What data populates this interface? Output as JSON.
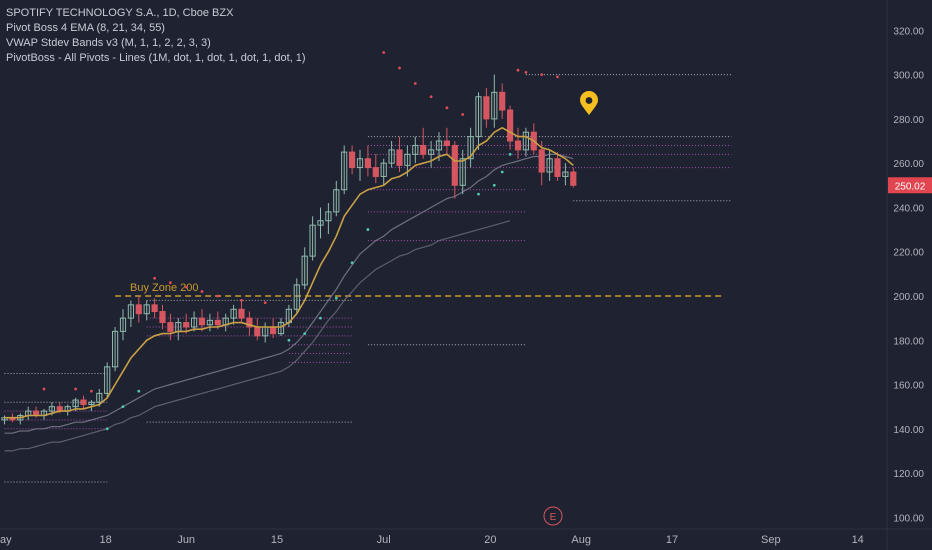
{
  "colors": {
    "background": "#1f2230",
    "text": "#b2b5be",
    "up_candle": "#8fb9ac",
    "down_candle": "#d55660",
    "ema": "#c9a045",
    "vwap": "#77798a",
    "psar_red": "#e04b55",
    "psar_teal": "#4ec7b4",
    "pivot_white": "#cfd2da",
    "pivot_magenta": "#c45bd1",
    "buy_zone": "#c99a2e",
    "price_badge": "#e1454f",
    "marker": "#f5c01f"
  },
  "legend": {
    "title": "SPOTIFY TECHNOLOGY S.A., 1D, Cboe BZX",
    "line1": "Pivot Boss 4 EMA (8, 21, 34, 55)",
    "line2": "VWAP Stdev Bands v3 (M, 1, 1, 2, 2, 3, 3)",
    "line3": "PivotBoss - All Pivots - Lines (1M, dot, 1, dot, 1, dot, 1, dot, 1)"
  },
  "price_label": "250.02",
  "earnings_label": "E",
  "chart_data": {
    "type": "candlestick",
    "ylim": [
      97,
      331
    ],
    "y_ticks": [
      "100.00",
      "120.00",
      "140.00",
      "160.00",
      "180.00",
      "200.00",
      "220.00",
      "240.00",
      "260.00",
      "280.00",
      "300.00",
      "320.00"
    ],
    "x_ticks": [
      "ay",
      "18",
      "Jun",
      "15",
      "Jul",
      "20",
      "Aug",
      "17",
      "Sep",
      "14"
    ],
    "annotation": "Buy Zone 200",
    "buy_zone_level": 200,
    "last_price": 250.02,
    "candles": [
      {
        "o": 144,
        "h": 146,
        "l": 142,
        "c": 145
      },
      {
        "o": 145,
        "h": 147,
        "l": 143,
        "c": 144
      },
      {
        "o": 144,
        "h": 147,
        "l": 142,
        "c": 146
      },
      {
        "o": 146,
        "h": 150,
        "l": 144,
        "c": 148
      },
      {
        "o": 148,
        "h": 150,
        "l": 145,
        "c": 146
      },
      {
        "o": 146,
        "h": 149,
        "l": 144,
        "c": 148
      },
      {
        "o": 148,
        "h": 152,
        "l": 146,
        "c": 150
      },
      {
        "o": 150,
        "h": 152,
        "l": 147,
        "c": 148
      },
      {
        "o": 148,
        "h": 151,
        "l": 146,
        "c": 150
      },
      {
        "o": 150,
        "h": 154,
        "l": 148,
        "c": 153
      },
      {
        "o": 153,
        "h": 155,
        "l": 149,
        "c": 151
      },
      {
        "o": 151,
        "h": 153,
        "l": 148,
        "c": 152
      },
      {
        "o": 152,
        "h": 158,
        "l": 150,
        "c": 156
      },
      {
        "o": 156,
        "h": 170,
        "l": 154,
        "c": 168
      },
      {
        "o": 168,
        "h": 186,
        "l": 166,
        "c": 184
      },
      {
        "o": 184,
        "h": 194,
        "l": 180,
        "c": 190
      },
      {
        "o": 190,
        "h": 198,
        "l": 186,
        "c": 196
      },
      {
        "o": 196,
        "h": 200,
        "l": 188,
        "c": 192
      },
      {
        "o": 192,
        "h": 198,
        "l": 189,
        "c": 196
      },
      {
        "o": 196,
        "h": 199,
        "l": 190,
        "c": 193
      },
      {
        "o": 193,
        "h": 196,
        "l": 185,
        "c": 188
      },
      {
        "o": 188,
        "h": 192,
        "l": 180,
        "c": 184
      },
      {
        "o": 184,
        "h": 190,
        "l": 180,
        "c": 188
      },
      {
        "o": 188,
        "h": 192,
        "l": 183,
        "c": 186
      },
      {
        "o": 186,
        "h": 193,
        "l": 184,
        "c": 190
      },
      {
        "o": 190,
        "h": 194,
        "l": 184,
        "c": 187
      },
      {
        "o": 187,
        "h": 192,
        "l": 184,
        "c": 189
      },
      {
        "o": 189,
        "h": 193,
        "l": 185,
        "c": 187
      },
      {
        "o": 187,
        "h": 192,
        "l": 184,
        "c": 190
      },
      {
        "o": 190,
        "h": 196,
        "l": 187,
        "c": 194
      },
      {
        "o": 194,
        "h": 198,
        "l": 188,
        "c": 190
      },
      {
        "o": 190,
        "h": 193,
        "l": 182,
        "c": 186
      },
      {
        "o": 186,
        "h": 190,
        "l": 180,
        "c": 182
      },
      {
        "o": 182,
        "h": 188,
        "l": 179,
        "c": 186
      },
      {
        "o": 186,
        "h": 190,
        "l": 181,
        "c": 183
      },
      {
        "o": 183,
        "h": 190,
        "l": 182,
        "c": 188
      },
      {
        "o": 188,
        "h": 196,
        "l": 186,
        "c": 194
      },
      {
        "o": 194,
        "h": 208,
        "l": 192,
        "c": 205
      },
      {
        "o": 205,
        "h": 222,
        "l": 203,
        "c": 218
      },
      {
        "o": 218,
        "h": 236,
        "l": 216,
        "c": 232
      },
      {
        "o": 232,
        "h": 240,
        "l": 226,
        "c": 234
      },
      {
        "o": 234,
        "h": 242,
        "l": 228,
        "c": 238
      },
      {
        "o": 238,
        "h": 252,
        "l": 236,
        "c": 248
      },
      {
        "o": 248,
        "h": 268,
        "l": 246,
        "c": 265
      },
      {
        "o": 265,
        "h": 268,
        "l": 255,
        "c": 258
      },
      {
        "o": 258,
        "h": 266,
        "l": 252,
        "c": 262
      },
      {
        "o": 262,
        "h": 268,
        "l": 254,
        "c": 258
      },
      {
        "o": 258,
        "h": 264,
        "l": 251,
        "c": 254
      },
      {
        "o": 254,
        "h": 262,
        "l": 250,
        "c": 260
      },
      {
        "o": 260,
        "h": 270,
        "l": 258,
        "c": 266
      },
      {
        "o": 266,
        "h": 272,
        "l": 256,
        "c": 259
      },
      {
        "o": 259,
        "h": 268,
        "l": 254,
        "c": 264
      },
      {
        "o": 264,
        "h": 272,
        "l": 260,
        "c": 268
      },
      {
        "o": 268,
        "h": 276,
        "l": 262,
        "c": 264
      },
      {
        "o": 264,
        "h": 270,
        "l": 258,
        "c": 266
      },
      {
        "o": 266,
        "h": 274,
        "l": 261,
        "c": 270
      },
      {
        "o": 270,
        "h": 276,
        "l": 264,
        "c": 268
      },
      {
        "o": 268,
        "h": 270,
        "l": 244,
        "c": 250
      },
      {
        "o": 250,
        "h": 266,
        "l": 246,
        "c": 262
      },
      {
        "o": 262,
        "h": 276,
        "l": 258,
        "c": 272
      },
      {
        "o": 272,
        "h": 292,
        "l": 266,
        "c": 290
      },
      {
        "o": 290,
        "h": 294,
        "l": 276,
        "c": 280
      },
      {
        "o": 280,
        "h": 300,
        "l": 276,
        "c": 292
      },
      {
        "o": 292,
        "h": 296,
        "l": 280,
        "c": 284
      },
      {
        "o": 284,
        "h": 286,
        "l": 266,
        "c": 270
      },
      {
        "o": 270,
        "h": 276,
        "l": 262,
        "c": 266
      },
      {
        "o": 266,
        "h": 276,
        "l": 263,
        "c": 274
      },
      {
        "o": 274,
        "h": 278,
        "l": 264,
        "c": 266
      },
      {
        "o": 266,
        "h": 270,
        "l": 250,
        "c": 256
      },
      {
        "o": 256,
        "h": 266,
        "l": 252,
        "c": 262
      },
      {
        "o": 262,
        "h": 265,
        "l": 252,
        "c": 254
      },
      {
        "o": 254,
        "h": 260,
        "l": 250,
        "c": 256
      },
      {
        "o": 256,
        "h": 258,
        "l": 249,
        "c": 250.02
      }
    ],
    "ema": [
      145,
      145,
      145,
      146,
      146,
      146,
      147,
      148,
      148,
      149,
      149,
      150,
      151,
      154,
      160,
      166,
      172,
      176,
      180,
      182,
      183,
      183,
      184,
      184,
      185,
      185,
      186,
      186,
      187,
      188,
      188,
      187,
      186,
      186,
      186,
      186,
      188,
      192,
      198,
      206,
      214,
      220,
      227,
      236,
      241,
      246,
      248,
      249,
      250,
      253,
      254,
      256,
      259,
      260,
      261,
      263,
      264,
      261,
      261,
      263,
      268,
      270,
      274,
      276,
      274,
      272,
      272,
      270,
      267,
      266,
      264,
      262,
      259
    ],
    "vwap_lower": [
      138,
      138,
      139,
      139,
      140,
      140,
      141,
      141,
      142,
      143,
      143,
      144,
      145,
      146,
      148,
      150,
      152,
      154,
      156,
      158,
      159,
      160,
      161,
      162,
      163,
      164,
      165,
      166,
      167,
      168,
      169,
      170,
      171,
      172,
      173,
      174,
      176,
      179,
      183,
      188,
      193,
      198,
      203,
      209,
      214,
      219,
      222,
      225,
      227,
      230,
      232,
      234,
      236,
      238,
      240,
      242,
      244,
      245,
      247,
      249,
      252,
      254,
      257,
      259,
      260,
      261,
      262,
      263,
      263,
      264,
      264,
      263,
      262
    ],
    "vwap_lower2": [
      130,
      130,
      131,
      131,
      132,
      133,
      134,
      134,
      135,
      136,
      137,
      138,
      139,
      140,
      142,
      143,
      145,
      146,
      148,
      150,
      151,
      152,
      153,
      154,
      155,
      156,
      157,
      158,
      159,
      160,
      161,
      162,
      163,
      164,
      165,
      166,
      168,
      171,
      175,
      179,
      184,
      189,
      193,
      198,
      202,
      206,
      209,
      212,
      214,
      216,
      218,
      219,
      221,
      222,
      223,
      225,
      226,
      227,
      228,
      229,
      230,
      231,
      232,
      233,
      234
    ],
    "psar": [
      {
        "x": 5,
        "y": 158,
        "side": "above"
      },
      {
        "x": 9,
        "y": 158,
        "side": "above"
      },
      {
        "x": 11,
        "y": 157,
        "side": "above"
      },
      {
        "x": 13,
        "y": 140,
        "side": "below"
      },
      {
        "x": 15,
        "y": 150,
        "side": "below"
      },
      {
        "x": 17,
        "y": 157,
        "side": "below"
      },
      {
        "x": 19,
        "y": 208,
        "side": "above"
      },
      {
        "x": 21,
        "y": 206,
        "side": "above"
      },
      {
        "x": 23,
        "y": 204,
        "side": "above"
      },
      {
        "x": 25,
        "y": 202,
        "side": "above"
      },
      {
        "x": 27,
        "y": 200,
        "side": "above"
      },
      {
        "x": 30,
        "y": 198,
        "side": "above"
      },
      {
        "x": 33,
        "y": 197,
        "side": "above"
      },
      {
        "x": 36,
        "y": 180,
        "side": "below"
      },
      {
        "x": 38,
        "y": 183,
        "side": "below"
      },
      {
        "x": 40,
        "y": 190,
        "side": "below"
      },
      {
        "x": 42,
        "y": 199,
        "side": "below"
      },
      {
        "x": 44,
        "y": 215,
        "side": "below"
      },
      {
        "x": 46,
        "y": 230,
        "side": "below"
      },
      {
        "x": 48,
        "y": 310,
        "side": "above"
      },
      {
        "x": 50,
        "y": 303,
        "side": "above"
      },
      {
        "x": 52,
        "y": 296,
        "side": "above"
      },
      {
        "x": 54,
        "y": 290,
        "side": "above"
      },
      {
        "x": 56,
        "y": 285,
        "side": "above"
      },
      {
        "x": 58,
        "y": 282,
        "side": "above"
      },
      {
        "x": 60,
        "y": 246,
        "side": "below"
      },
      {
        "x": 62,
        "y": 250,
        "side": "below"
      },
      {
        "x": 63,
        "y": 256,
        "side": "below"
      },
      {
        "x": 64,
        "y": 264,
        "side": "below"
      },
      {
        "x": 65,
        "y": 302,
        "side": "above"
      },
      {
        "x": 66,
        "y": 301,
        "side": "above"
      },
      {
        "x": 68,
        "y": 300,
        "side": "above"
      },
      {
        "x": 70,
        "y": 299,
        "side": "above"
      }
    ],
    "pivots": [
      {
        "y": 165,
        "from": 0,
        "to": 13,
        "color": "white"
      },
      {
        "y": 152,
        "from": 0,
        "to": 13,
        "color": "white"
      },
      {
        "y": 148,
        "from": 0,
        "to": 13,
        "color": "magenta"
      },
      {
        "y": 144,
        "from": 0,
        "to": 13,
        "color": "magenta"
      },
      {
        "y": 140,
        "from": 0,
        "to": 13,
        "color": "magenta"
      },
      {
        "y": 116,
        "from": 0,
        "to": 13,
        "color": "white"
      },
      {
        "y": 198,
        "from": 18,
        "to": 44,
        "color": "white"
      },
      {
        "y": 190,
        "from": 18,
        "to": 44,
        "color": "magenta"
      },
      {
        "y": 186,
        "from": 18,
        "to": 44,
        "color": "magenta"
      },
      {
        "y": 182,
        "from": 18,
        "to": 44,
        "color": "magenta"
      },
      {
        "y": 178,
        "from": 36,
        "to": 44,
        "color": "magenta"
      },
      {
        "y": 174,
        "from": 36,
        "to": 44,
        "color": "magenta"
      },
      {
        "y": 170,
        "from": 36,
        "to": 44,
        "color": "magenta"
      },
      {
        "y": 143,
        "from": 18,
        "to": 44,
        "color": "white"
      },
      {
        "y": 272,
        "from": 46,
        "to": 92,
        "color": "white"
      },
      {
        "y": 268,
        "from": 46,
        "to": 92,
        "color": "magenta"
      },
      {
        "y": 264,
        "from": 46,
        "to": 92,
        "color": "magenta"
      },
      {
        "y": 258,
        "from": 46,
        "to": 92,
        "color": "magenta"
      },
      {
        "y": 248,
        "from": 46,
        "to": 66,
        "color": "magenta"
      },
      {
        "y": 238,
        "from": 46,
        "to": 66,
        "color": "magenta"
      },
      {
        "y": 225,
        "from": 46,
        "to": 66,
        "color": "magenta"
      },
      {
        "y": 178,
        "from": 46,
        "to": 66,
        "color": "white"
      },
      {
        "y": 300,
        "from": 66,
        "to": 92,
        "color": "white"
      },
      {
        "y": 243,
        "from": 72,
        "to": 92,
        "color": "white"
      }
    ]
  }
}
